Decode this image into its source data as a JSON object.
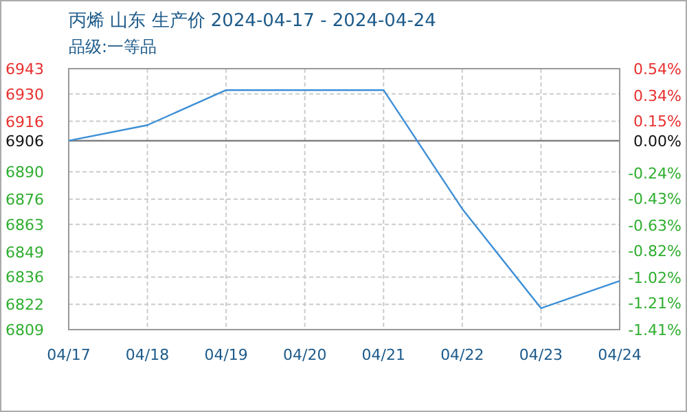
{
  "chart_data": {
    "type": "line",
    "title": "丙烯 山东 生产价 2024-04-17 - 2024-04-24",
    "subtitle": "品级:一等品",
    "categories": [
      "04/17",
      "04/18",
      "04/19",
      "04/20",
      "04/21",
      "04/22",
      "04/23",
      "04/24"
    ],
    "series": [
      {
        "color": "#3d8fd6",
        "values": [
          6906,
          6914,
          6932,
          6932,
          6932,
          6871,
          6820,
          6834
        ]
      }
    ],
    "ylim": [
      6809,
      6943
    ],
    "yticks": [
      6943,
      6930,
      6916,
      6906,
      6890,
      6876,
      6863,
      6849,
      6836,
      6822,
      6809
    ],
    "y2lim": [
      -1.41,
      0.54
    ],
    "y2ticks": [
      {
        "value": 0.54,
        "label": "0.54%"
      },
      {
        "value": 0.34,
        "label": "0.34%"
      },
      {
        "value": 0.15,
        "label": "0.15%"
      },
      {
        "value": 0,
        "label": "0.00%"
      },
      {
        "value": -0.24,
        "label": "-0.24%"
      },
      {
        "value": -0.43,
        "label": "-0.43%"
      },
      {
        "value": -0.63,
        "label": "-0.63%"
      },
      {
        "value": -0.82,
        "label": "-0.82%"
      },
      {
        "value": -1.02,
        "label": "-1.02%"
      },
      {
        "value": -1.21,
        "label": "-1.21%"
      },
      {
        "value": -1.41,
        "label": "-1.41%"
      }
    ],
    "ref_lines": [
      {
        "axis": "y",
        "value": 6906,
        "color": "#808080"
      }
    ],
    "grid": true,
    "marker": "none",
    "line_style": "solid"
  }
}
